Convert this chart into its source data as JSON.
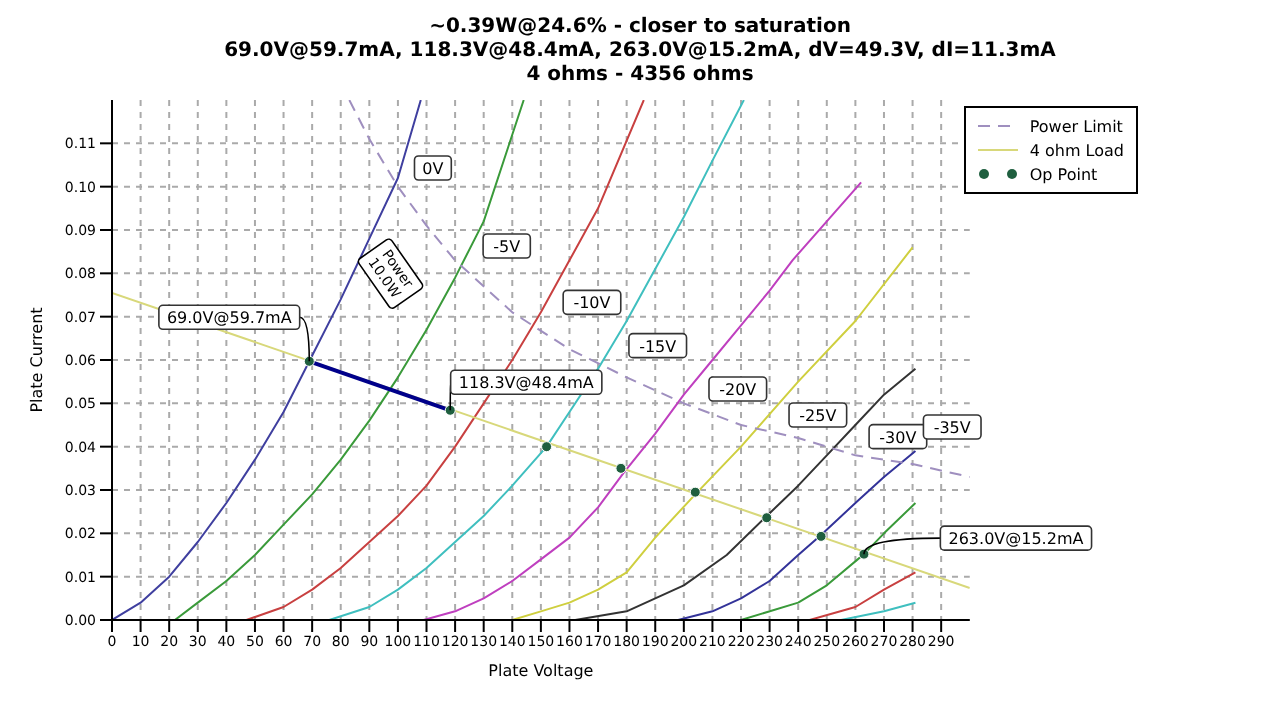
{
  "chart_data": {
    "type": "line",
    "title": "~0.39W@24.6% - closer to saturation\n69.0V@59.7mA, 118.3V@48.4mA, 263.0V@15.2mA, dV=49.3V, dI=11.3mA\n4 ohms - 4356 ohms",
    "xlabel": "Plate Voltage",
    "ylabel": "Plate Current",
    "xlim": [
      0,
      300
    ],
    "xticks": [
      0,
      10,
      20,
      30,
      40,
      50,
      60,
      70,
      80,
      90,
      100,
      110,
      120,
      130,
      140,
      150,
      160,
      170,
      180,
      190,
      200,
      210,
      220,
      230,
      240,
      250,
      260,
      270,
      280,
      290
    ],
    "ylim": [
      0,
      0.12
    ],
    "yticks": [
      {
        "value": 0,
        "label": "0.00"
      },
      0.01,
      0.02,
      0.03,
      0.04,
      0.05,
      0.06,
      0.07,
      0.08,
      0.09,
      {
        "value": 0.1,
        "label": "0.10"
      },
      0.11
    ],
    "grid": true,
    "legend": "top right",
    "series": [
      {
        "color": "#3f3f9f",
        "x": [
          0,
          10,
          20,
          30,
          40,
          50,
          60,
          69,
          80,
          90,
          100,
          108
        ],
        "values": [
          0,
          0.004,
          0.01,
          0.018,
          0.027,
          0.037,
          0.048,
          0.0597,
          0.074,
          0.088,
          0.102,
          0.12
        ]
      },
      {
        "color": "#3a9a3a",
        "x": [
          22,
          30,
          40,
          50,
          60,
          70,
          80,
          90,
          100,
          110,
          120,
          130,
          144
        ],
        "values": [
          0,
          0.004,
          0.009,
          0.015,
          0.022,
          0.029,
          0.037,
          0.046,
          0.056,
          0.067,
          0.079,
          0.092,
          0.12
        ]
      },
      {
        "color": "#c84040",
        "x": [
          47,
          60,
          70,
          80,
          90,
          100,
          110,
          120,
          130,
          140,
          150,
          160,
          170,
          186
        ],
        "values": [
          0,
          0.003,
          0.007,
          0.012,
          0.018,
          0.024,
          0.031,
          0.04,
          0.05,
          0.06,
          0.071,
          0.083,
          0.095,
          0.12
        ]
      },
      {
        "color": "#3fbfbf",
        "x": [
          76,
          90,
          100,
          110,
          120,
          130,
          140,
          152,
          160,
          170,
          180,
          190,
          200,
          210,
          221
        ],
        "values": [
          0,
          0.003,
          0.007,
          0.012,
          0.018,
          0.024,
          0.031,
          0.04,
          0.048,
          0.058,
          0.069,
          0.081,
          0.093,
          0.106,
          0.12
        ]
      },
      {
        "color": "#bf3fbf",
        "x": [
          109,
          120,
          130,
          140,
          150,
          160,
          170,
          179,
          190,
          200,
          210,
          220,
          230,
          238,
          250,
          262
        ],
        "values": [
          0,
          0.002,
          0.005,
          0.009,
          0.014,
          0.019,
          0.026,
          0.034,
          0.043,
          0.052,
          0.06,
          0.068,
          0.076,
          0.083,
          0.092,
          0.101
        ]
      },
      {
        "color": "#cfcf3f",
        "x": [
          140,
          150,
          160,
          170,
          180,
          190,
          204,
          220,
          240,
          260,
          280
        ],
        "values": [
          0,
          0.002,
          0.004,
          0.007,
          0.011,
          0.019,
          0.029,
          0.04,
          0.055,
          0.069,
          0.086
        ]
      },
      {
        "color": "#333333",
        "x": [
          162,
          180,
          200,
          215,
          229,
          240,
          250,
          260,
          270,
          281
        ],
        "values": [
          0,
          0.002,
          0.008,
          0.015,
          0.024,
          0.031,
          0.038,
          0.045,
          0.052,
          0.058
        ]
      },
      {
        "color": "#333399",
        "x": [
          198,
          210,
          220,
          230,
          240,
          248,
          260,
          270,
          281
        ],
        "values": [
          0,
          0.002,
          0.005,
          0.009,
          0.015,
          0.0196,
          0.027,
          0.033,
          0.039
        ]
      },
      {
        "color": "#3a9a3a",
        "x": [
          220,
          240,
          250,
          263,
          270,
          281
        ],
        "values": [
          0,
          0.004,
          0.008,
          0.0152,
          0.02,
          0.027
        ]
      },
      {
        "color": "#c84040",
        "x": [
          244,
          260,
          270,
          281
        ],
        "values": [
          0,
          0.003,
          0.007,
          0.011
        ]
      },
      {
        "color": "#3fbfbf",
        "x": [
          255,
          270,
          281
        ],
        "values": [
          0,
          0.002,
          0.004
        ]
      },
      {
        "name": "Power Limit",
        "color": "#9f8fbf",
        "line_style": "dashed",
        "x": [
          83,
          90,
          100,
          110,
          120,
          140,
          160,
          180,
          200,
          220,
          240,
          260,
          280,
          300
        ],
        "values": [
          0.12,
          0.111,
          0.1,
          0.091,
          0.083,
          0.071,
          0.0625,
          0.056,
          0.05,
          0.045,
          0.042,
          0.038,
          0.036,
          0.033
        ]
      },
      {
        "name": "4 ohm Load",
        "color": "#d8d87a",
        "x": [
          0,
          300
        ],
        "values": [
          0.0755,
          0.0074
        ]
      },
      {
        "color": "#00008b",
        "x": [
          69,
          118.3
        ],
        "values": [
          0.0597,
          0.0484
        ]
      },
      {
        "type": "scatter",
        "name": "Op Point",
        "color": "#1f5f3f",
        "marker": "circle",
        "x": [
          69,
          118.3,
          152,
          178,
          204,
          229,
          248,
          263
        ],
        "values": [
          0.0597,
          0.0484,
          0.04,
          0.035,
          0.0295,
          0.0236,
          0.0193,
          0.0152
        ]
      }
    ],
    "annotations": [
      {
        "text": "69.0V@59.7mA",
        "x": 69,
        "y": 0.0597
      },
      {
        "text": "118.3V@48.4mA",
        "x": 118.3,
        "y": 0.0484
      },
      {
        "text": "263.0V@15.2mA",
        "x": 263,
        "y": 0.0152
      },
      {
        "text": "Power 10.0W",
        "x": 110,
        "y": 0.091
      },
      {
        "text": "0V",
        "x": 103,
        "y": 0.108
      },
      {
        "text": "-5V",
        "x": 127,
        "y": 0.09
      },
      {
        "text": "-10V",
        "x": 155,
        "y": 0.077
      },
      {
        "text": "-15V",
        "x": 178,
        "y": 0.067
      },
      {
        "text": "-20V",
        "x": 206,
        "y": 0.057
      },
      {
        "text": "-25V",
        "x": 234,
        "y": 0.051
      },
      {
        "text": "-30V",
        "x": 262,
        "y": 0.046
      },
      {
        "text": "-35V",
        "x": 281,
        "y": 0.039
      }
    ]
  }
}
